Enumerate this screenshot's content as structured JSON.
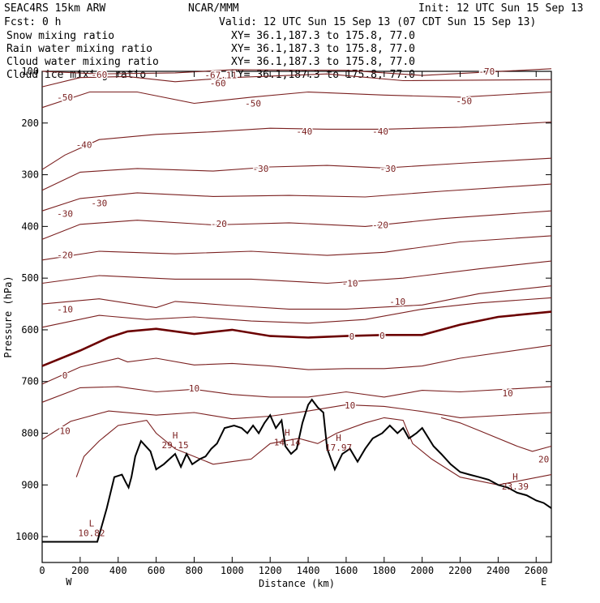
{
  "header": {
    "model": "SEAC4RS 15km ARW",
    "center": "NCAR/MMM",
    "init": "Init: 12 UTC Sun 15 Sep 13",
    "fcst": "Fcst:    0 h",
    "valid": "Valid: 12 UTC Sun 15 Sep 13 (07 CDT Sun 15 Sep 13)",
    "fields": [
      {
        "name": "Snow mixing ratio",
        "xy": "XY=  36.1,187.3 to 175.8, 77.0",
        "color": "#000000"
      },
      {
        "name": "Rain water mixing ratio",
        "xy": "XY=  36.1,187.3 to 175.8, 77.0",
        "color": "#c00000"
      },
      {
        "name": "Cloud water mixing ratio",
        "xy": "XY=  36.1,187.3 to 175.8, 77.0",
        "color": "#0000cc"
      },
      {
        "name": "Cloud ice mixing ratio",
        "xy": "XY=  36.1,187.3 to 175.8, 77.0",
        "color": "#000000"
      }
    ]
  },
  "chart_data": {
    "type": "line",
    "xlabel": "Distance (km)",
    "ylabel": "Pressure (hPa)",
    "xlim": [
      0,
      2680
    ],
    "ylim": [
      1050,
      100
    ],
    "x_ticks": [
      0,
      200,
      400,
      600,
      800,
      1000,
      1200,
      1400,
      1600,
      1800,
      2000,
      2200,
      2400,
      2600
    ],
    "y_ticks": [
      200,
      300,
      400,
      500,
      600,
      700,
      800,
      900,
      1000
    ],
    "y_top_label": "100",
    "west_label": "W",
    "east_label": "E",
    "colors": {
      "temp": "#7a1f1f",
      "zero": "#6b0000",
      "terrain": "#000000"
    },
    "temperature_contours": [
      {
        "value": -70,
        "points": [
          [
            0,
            100
          ],
          [
            300,
            105
          ],
          [
            700,
            103
          ],
          [
            1000,
            97
          ],
          [
            1600,
            98
          ],
          [
            2000,
            108
          ],
          [
            2680,
            95
          ]
        ],
        "labels": [
          [
            2340,
            100,
            "-70"
          ]
        ]
      },
      {
        "value": -60,
        "points": [
          [
            0,
            130
          ],
          [
            200,
            112
          ],
          [
            450,
            110
          ],
          [
            700,
            120
          ],
          [
            1000,
            112
          ],
          [
            1500,
            105
          ],
          [
            1900,
            118
          ],
          [
            2680,
            116
          ]
        ],
        "labels": [
          [
            300,
            106,
            "-60"
          ],
          [
            940,
            107,
            "-67.11"
          ],
          [
            925,
            123,
            "-60"
          ]
        ]
      },
      {
        "value": -50,
        "points": [
          [
            0,
            170
          ],
          [
            250,
            140
          ],
          [
            500,
            140
          ],
          [
            800,
            162
          ],
          [
            1100,
            150
          ],
          [
            1400,
            140
          ],
          [
            1800,
            146
          ],
          [
            2200,
            150
          ],
          [
            2680,
            140
          ]
        ],
        "labels": [
          [
            120,
            150,
            "-50"
          ],
          [
            1110,
            162,
            "-50"
          ],
          [
            2220,
            157,
            "-50"
          ]
        ]
      },
      {
        "value": -40,
        "points": [
          [
            0,
            290
          ],
          [
            120,
            262
          ],
          [
            300,
            232
          ],
          [
            600,
            222
          ],
          [
            900,
            217
          ],
          [
            1200,
            210
          ],
          [
            1500,
            212
          ],
          [
            1800,
            212
          ],
          [
            2200,
            208
          ],
          [
            2680,
            198
          ]
        ],
        "labels": [
          [
            220,
            242,
            "-40"
          ],
          [
            1380,
            216,
            "-40"
          ],
          [
            1780,
            216,
            "-40"
          ]
        ]
      },
      {
        "value": -30,
        "points": [
          [
            0,
            330
          ],
          [
            200,
            295
          ],
          [
            500,
            288
          ],
          [
            900,
            293
          ],
          [
            1200,
            285
          ],
          [
            1500,
            282
          ],
          [
            1800,
            287
          ],
          [
            2200,
            278
          ],
          [
            2680,
            268
          ]
        ],
        "labels": [
          [
            1150,
            288,
            "-30"
          ],
          [
            1820,
            288,
            "-30"
          ]
        ]
      },
      {
        "value": -30,
        "points": [
          [
            0,
            370
          ],
          [
            200,
            346
          ],
          [
            500,
            335
          ],
          [
            900,
            342
          ],
          [
            1300,
            340
          ],
          [
            1700,
            343
          ],
          [
            2100,
            332
          ],
          [
            2680,
            318
          ]
        ],
        "labels": [
          [
            120,
            375,
            "-30"
          ],
          [
            300,
            355,
            "-30"
          ]
        ]
      },
      {
        "value": -20,
        "points": [
          [
            0,
            425
          ],
          [
            200,
            396
          ],
          [
            500,
            388
          ],
          [
            900,
            397
          ],
          [
            1300,
            393
          ],
          [
            1700,
            400
          ],
          [
            2100,
            385
          ],
          [
            2680,
            370
          ]
        ],
        "labels": [
          [
            930,
            395,
            "-20"
          ],
          [
            1780,
            397,
            "-20"
          ]
        ]
      },
      {
        "value": -20,
        "points": [
          [
            0,
            465
          ],
          [
            300,
            448
          ],
          [
            700,
            453
          ],
          [
            1100,
            448
          ],
          [
            1500,
            456
          ],
          [
            1800,
            450
          ],
          [
            2200,
            430
          ],
          [
            2680,
            418
          ]
        ],
        "labels": [
          [
            120,
            455,
            "-20"
          ]
        ]
      },
      {
        "value": -10,
        "points": [
          [
            0,
            510
          ],
          [
            300,
            495
          ],
          [
            700,
            502
          ],
          [
            1100,
            502
          ],
          [
            1500,
            510
          ],
          [
            1900,
            500
          ],
          [
            2300,
            482
          ],
          [
            2680,
            467
          ]
        ],
        "labels": [
          [
            1620,
            510,
            "-10"
          ]
        ]
      },
      {
        "value": -10,
        "points": [
          [
            0,
            550
          ],
          [
            300,
            540
          ],
          [
            600,
            557
          ],
          [
            700,
            545
          ],
          [
            1000,
            553
          ],
          [
            1300,
            560
          ],
          [
            1600,
            560
          ],
          [
            2000,
            552
          ],
          [
            2300,
            530
          ],
          [
            2680,
            515
          ]
        ],
        "labels": [
          [
            120,
            560,
            "-10"
          ],
          [
            1870,
            545,
            "-10"
          ]
        ]
      },
      {
        "value": -10,
        "points": [
          [
            0,
            595
          ],
          [
            300,
            572
          ],
          [
            550,
            580
          ],
          [
            800,
            575
          ],
          [
            1100,
            583
          ],
          [
            1400,
            587
          ],
          [
            1700,
            580
          ],
          [
            2000,
            560
          ],
          [
            2300,
            548
          ],
          [
            2680,
            538
          ]
        ],
        "labels": []
      },
      {
        "value": 0,
        "zero": true,
        "points": [
          [
            0,
            670
          ],
          [
            200,
            640
          ],
          [
            350,
            615
          ],
          [
            450,
            603
          ],
          [
            600,
            598
          ],
          [
            800,
            608
          ],
          [
            1000,
            600
          ],
          [
            1200,
            612
          ],
          [
            1400,
            615
          ],
          [
            1600,
            612
          ],
          [
            1800,
            610
          ],
          [
            2000,
            610
          ],
          [
            2200,
            590
          ],
          [
            2400,
            575
          ],
          [
            2680,
            565
          ]
        ],
        "labels": [
          [
            1630,
            613,
            "0"
          ],
          [
            1790,
            611,
            "0"
          ]
        ]
      },
      {
        "value": 0,
        "points": [
          [
            0,
            705
          ],
          [
            200,
            672
          ],
          [
            400,
            655
          ],
          [
            450,
            662
          ],
          [
            600,
            655
          ],
          [
            800,
            668
          ],
          [
            1000,
            665
          ],
          [
            1200,
            670
          ],
          [
            1400,
            677
          ],
          [
            1600,
            675
          ],
          [
            1800,
            675
          ],
          [
            2000,
            670
          ],
          [
            2200,
            655
          ],
          [
            2680,
            630
          ]
        ],
        "labels": [
          [
            120,
            688,
            "0"
          ]
        ]
      },
      {
        "value": 10,
        "points": [
          [
            0,
            740
          ],
          [
            200,
            712
          ],
          [
            400,
            710
          ],
          [
            600,
            720
          ],
          [
            800,
            715
          ],
          [
            1000,
            725
          ],
          [
            1200,
            730
          ],
          [
            1400,
            730
          ],
          [
            1600,
            720
          ],
          [
            1800,
            730
          ],
          [
            2000,
            717
          ],
          [
            2200,
            720
          ],
          [
            2680,
            710
          ]
        ],
        "labels": [
          [
            800,
            713,
            "10"
          ],
          [
            2450,
            722,
            "10"
          ]
        ]
      },
      {
        "value": 10,
        "points": [
          [
            0,
            812
          ],
          [
            150,
            777
          ],
          [
            350,
            757
          ],
          [
            600,
            765
          ],
          [
            800,
            760
          ],
          [
            1000,
            772
          ],
          [
            1200,
            767
          ],
          [
            1400,
            757
          ],
          [
            1600,
            745
          ],
          [
            1800,
            748
          ],
          [
            2000,
            758
          ],
          [
            2200,
            770
          ],
          [
            2680,
            760
          ]
        ],
        "labels": [
          [
            1620,
            746,
            "10"
          ],
          [
            120,
            795,
            "10"
          ]
        ]
      },
      {
        "value": 10,
        "points": [
          [
            180,
            885
          ],
          [
            220,
            845
          ],
          [
            300,
            815
          ],
          [
            400,
            785
          ],
          [
            550,
            775
          ],
          [
            600,
            800
          ],
          [
            700,
            830
          ],
          [
            800,
            845
          ],
          [
            900,
            860
          ],
          [
            1000,
            855
          ],
          [
            1100,
            850
          ],
          [
            1200,
            820
          ],
          [
            1350,
            810
          ],
          [
            1450,
            820
          ],
          [
            1550,
            800
          ],
          [
            1700,
            780
          ],
          [
            1800,
            770
          ],
          [
            1900,
            775
          ],
          [
            1950,
            820
          ],
          [
            2050,
            850
          ],
          [
            2200,
            885
          ],
          [
            2400,
            900
          ],
          [
            2680,
            880
          ]
        ],
        "labels": []
      },
      {
        "value": 20,
        "points": [
          [
            2100,
            770
          ],
          [
            2200,
            780
          ],
          [
            2300,
            795
          ],
          [
            2500,
            825
          ],
          [
            2580,
            835
          ],
          [
            2680,
            825
          ]
        ],
        "labels": [
          [
            2640,
            850,
            "20"
          ]
        ]
      }
    ],
    "extrema": [
      {
        "kind": "L",
        "x": 260,
        "p": 980,
        "value": "10.82"
      },
      {
        "kind": "H",
        "x": 700,
        "p": 810,
        "value": "29.15"
      },
      {
        "kind": "H",
        "x": 1290,
        "p": 805,
        "value": "14.14"
      },
      {
        "kind": "H",
        "x": 1560,
        "p": 815,
        "value": "17.97"
      },
      {
        "kind": "H",
        "x": 2490,
        "p": 890,
        "value": "23.39"
      }
    ],
    "terrain": [
      [
        0,
        1010
      ],
      [
        290,
        1010
      ],
      [
        340,
        945
      ],
      [
        380,
        885
      ],
      [
        420,
        880
      ],
      [
        440,
        895
      ],
      [
        455,
        905
      ],
      [
        470,
        885
      ],
      [
        490,
        845
      ],
      [
        520,
        815
      ],
      [
        570,
        835
      ],
      [
        600,
        870
      ],
      [
        640,
        860
      ],
      [
        700,
        840
      ],
      [
        730,
        865
      ],
      [
        760,
        840
      ],
      [
        790,
        860
      ],
      [
        830,
        850
      ],
      [
        860,
        845
      ],
      [
        890,
        830
      ],
      [
        920,
        820
      ],
      [
        960,
        790
      ],
      [
        1010,
        785
      ],
      [
        1050,
        790
      ],
      [
        1080,
        800
      ],
      [
        1110,
        785
      ],
      [
        1140,
        800
      ],
      [
        1170,
        780
      ],
      [
        1200,
        765
      ],
      [
        1230,
        790
      ],
      [
        1260,
        775
      ],
      [
        1280,
        825
      ],
      [
        1310,
        840
      ],
      [
        1340,
        830
      ],
      [
        1370,
        780
      ],
      [
        1400,
        745
      ],
      [
        1420,
        735
      ],
      [
        1450,
        750
      ],
      [
        1480,
        760
      ],
      [
        1500,
        830
      ],
      [
        1540,
        870
      ],
      [
        1580,
        840
      ],
      [
        1620,
        830
      ],
      [
        1660,
        855
      ],
      [
        1700,
        830
      ],
      [
        1740,
        810
      ],
      [
        1790,
        800
      ],
      [
        1830,
        785
      ],
      [
        1870,
        800
      ],
      [
        1900,
        790
      ],
      [
        1930,
        810
      ],
      [
        1970,
        800
      ],
      [
        2000,
        790
      ],
      [
        2060,
        825
      ],
      [
        2100,
        840
      ],
      [
        2150,
        860
      ],
      [
        2200,
        875
      ],
      [
        2250,
        880
      ],
      [
        2300,
        885
      ],
      [
        2350,
        890
      ],
      [
        2400,
        900
      ],
      [
        2450,
        905
      ],
      [
        2500,
        915
      ],
      [
        2550,
        920
      ],
      [
        2600,
        930
      ],
      [
        2640,
        935
      ],
      [
        2680,
        945
      ]
    ]
  }
}
